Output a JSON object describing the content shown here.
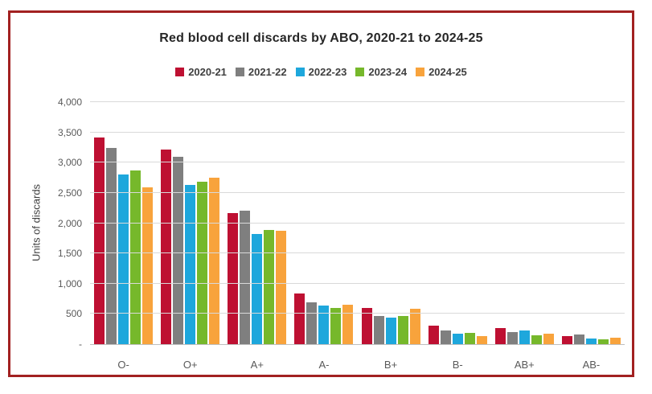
{
  "frame": {
    "border_color": "#A22121"
  },
  "chart_data": {
    "type": "bar",
    "title": "Red blood cell discards by ABO, 2020-21 to 2024-25",
    "xlabel": "",
    "ylabel": "Units of discards",
    "categories": [
      "O-",
      "O+",
      "A+",
      "A-",
      "B+",
      "B-",
      "AB+",
      "AB-"
    ],
    "series": [
      {
        "name": "2020-21",
        "color": "#BE1032",
        "values": [
          3420,
          3210,
          2160,
          840,
          600,
          300,
          260,
          130
        ]
      },
      {
        "name": "2021-22",
        "color": "#7F7F7F",
        "values": [
          3240,
          3090,
          2210,
          690,
          470,
          230,
          200,
          160
        ]
      },
      {
        "name": "2022-23",
        "color": "#1EA7DC",
        "values": [
          2800,
          2630,
          1820,
          640,
          440,
          170,
          230,
          90
        ]
      },
      {
        "name": "2023-24",
        "color": "#76B82B",
        "values": [
          2870,
          2690,
          1890,
          600,
          470,
          190,
          140,
          80
        ]
      },
      {
        "name": "2024-25",
        "color": "#F8A33C",
        "values": [
          2590,
          2750,
          1880,
          650,
          580,
          130,
          170,
          100
        ]
      }
    ],
    "ylim": [
      0,
      4000
    ],
    "ytick_step": 500,
    "ytick_labels": [
      "-",
      "500",
      "1,000",
      "1,500",
      "2,000",
      "2,500",
      "3,000",
      "3,500",
      "4,000"
    ],
    "grid": "horizontal",
    "legend_position": "top"
  }
}
